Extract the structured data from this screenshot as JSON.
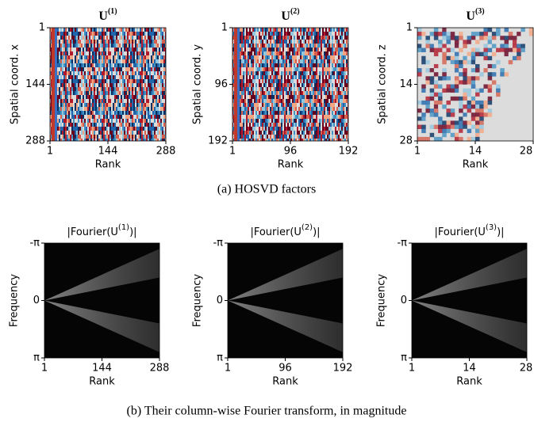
{
  "figure": {
    "rows": [
      {
        "caption": "(a)  HOSVD factors",
        "panels": [
          {
            "title_pre": "U",
            "title_sup": "(1)",
            "title_post": "",
            "ylabel": "Spatial coord. x",
            "xlabel": "Rank",
            "xticks": [
              "1",
              "144",
              "288"
            ],
            "yticks": [
              "1",
              "144",
              "288"
            ]
          },
          {
            "title_pre": "U",
            "title_sup": "(2)",
            "title_post": "",
            "ylabel": "Spatial coord. y",
            "xlabel": "Rank",
            "xticks": [
              "1",
              "96",
              "192"
            ],
            "yticks": [
              "1",
              "96",
              "192"
            ]
          },
          {
            "title_pre": "U",
            "title_sup": "(3)",
            "title_post": "",
            "ylabel": "Spatial coord. z",
            "xlabel": "Rank",
            "xticks": [
              "1",
              "14",
              "28"
            ],
            "yticks": [
              "1",
              "14",
              "28"
            ]
          }
        ]
      },
      {
        "caption": "(b)  Their column-wise Fourier transform, in magnitude",
        "panels": [
          {
            "title_pre": "|Fourier(U",
            "title_sup": "(1)",
            "title_post": ")|",
            "ylabel": "Frequency",
            "xlabel": "Rank",
            "xticks": [
              "1",
              "144",
              "288"
            ],
            "yticks": [
              "-π",
              "0",
              "π"
            ]
          },
          {
            "title_pre": "|Fourier(U",
            "title_sup": "(2)",
            "title_post": ")|",
            "ylabel": "Frequency",
            "xlabel": "Rank",
            "xticks": [
              "1",
              "96",
              "192"
            ],
            "yticks": [
              "-π",
              "0",
              "π"
            ]
          },
          {
            "title_pre": "|Fourier(U",
            "title_sup": "(3)",
            "title_post": ")|",
            "ylabel": "Frequency",
            "xlabel": "Rank",
            "xticks": [
              "1",
              "14",
              "28"
            ],
            "yticks": [
              "-π",
              "0",
              "π"
            ]
          }
        ]
      }
    ]
  }
}
